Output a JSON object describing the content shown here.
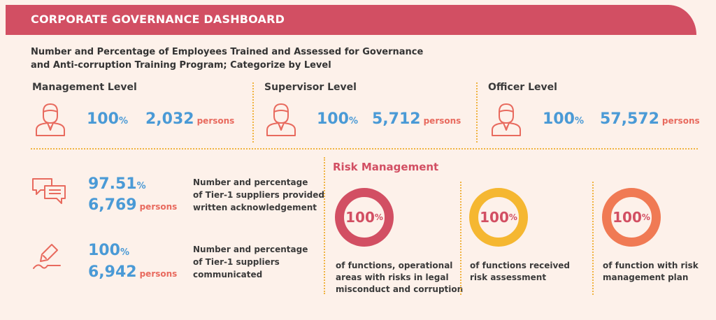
{
  "header": {
    "title": "CORPORATE GOVERNANCE DASHBOARD"
  },
  "subtitle": {
    "line1": "Number and Percentage of Employees Trained and Assessed for Governance",
    "line2": "and Anti-corruption Training Program; Categorize by Level"
  },
  "levels": [
    {
      "title": "Management Level",
      "percent": "100",
      "count": "2,032",
      "unit": "persons"
    },
    {
      "title": "Supervisor Level",
      "percent": "100",
      "count": "5,712",
      "unit": "persons"
    },
    {
      "title": "Officer Level",
      "percent": "100",
      "count": "57,572",
      "unit": "persons"
    }
  ],
  "pct_symbol": "%",
  "suppliers": [
    {
      "percent": "97.51",
      "count": "6,769",
      "unit": "persons",
      "desc1": "Number and percentage",
      "desc2": "of Tier-1 suppliers provided",
      "desc3": "written acknowledgement"
    },
    {
      "percent": "100",
      "count": "6,942",
      "unit": "persons",
      "desc1": "Number and percentage",
      "desc2": "of Tier-1 suppliers",
      "desc3": "communicated"
    }
  ],
  "risk": {
    "title": "Risk Management",
    "items": [
      {
        "percent": "100",
        "desc1": "of functions, operational",
        "desc2": "areas with risks in legal",
        "desc3": "misconduct and corruption",
        "color": "#d24f63"
      },
      {
        "percent": "100",
        "desc1": "of functions received",
        "desc2": "risk assessment",
        "desc3": "",
        "color": "#f5b731"
      },
      {
        "percent": "100",
        "desc1": "of function with risk",
        "desc2": "management plan",
        "desc3": "",
        "color": "#f07a54"
      }
    ]
  },
  "icons": {
    "person": "person-icon",
    "chat": "chat-bubbles-icon",
    "pen": "pen-signature-icon"
  },
  "colors": {
    "accent": "#d24f63",
    "blue": "#4a9ad6",
    "divider": "#f0b340",
    "icon": "#e86a5e"
  }
}
